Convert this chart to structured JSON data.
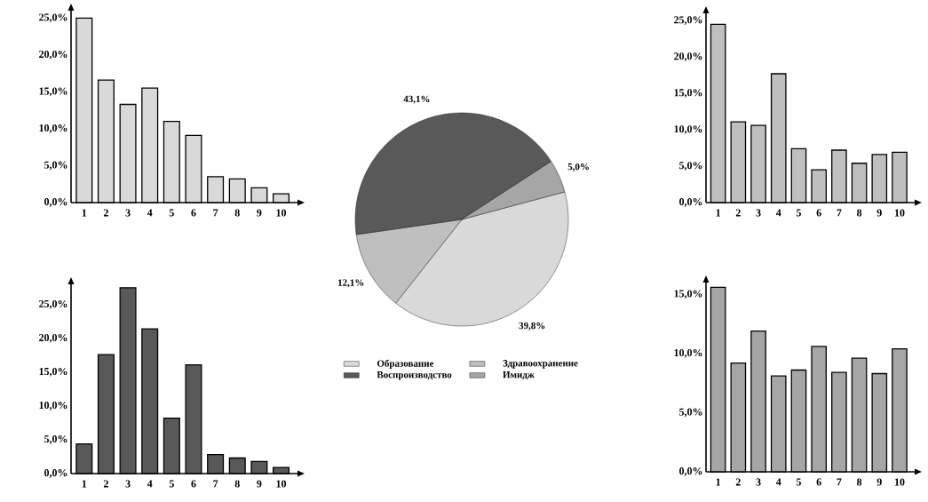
{
  "chart_data": [
    {
      "type": "bar",
      "categories": [
        "1",
        "2",
        "3",
        "4",
        "5",
        "6",
        "7",
        "8",
        "9",
        "10"
      ],
      "values": [
        25.0,
        16.6,
        13.3,
        15.5,
        11.0,
        9.1,
        3.5,
        3.2,
        2.0,
        1.2
      ],
      "color": "#d9d9d9",
      "ylim": [
        0,
        26
      ],
      "yticks": [
        {
          "value": 0,
          "label": "0,0%"
        },
        {
          "value": 5,
          "label": "5,0%"
        },
        {
          "value": 10,
          "label": "10,0%"
        },
        {
          "value": 15,
          "label": "15,0%"
        },
        {
          "value": 20,
          "label": "20,0%"
        },
        {
          "value": 25,
          "label": "25,0%"
        }
      ]
    },
    {
      "type": "pie",
      "categories": [
        "Образование",
        "Здравоохранение",
        "Воспроизводство",
        "Имидж"
      ],
      "values": [
        39.8,
        12.1,
        43.1,
        5.0
      ],
      "value_labels": [
        "39,8%",
        "12,1%",
        "43,1%",
        "5,0%"
      ],
      "colors": [
        "#d9d9d9",
        "#bfbfbf",
        "#595959",
        "#a6a6a6"
      ],
      "legend": "bottom"
    },
    {
      "type": "bar",
      "categories": [
        "1",
        "2",
        "3",
        "4",
        "5",
        "6",
        "7",
        "8",
        "9",
        "10"
      ],
      "values": [
        24.5,
        11.1,
        10.6,
        17.7,
        7.4,
        4.5,
        7.2,
        5.4,
        6.6,
        6.9
      ],
      "color": "#bfbfbf",
      "ylim": [
        0,
        26
      ],
      "yticks": [
        {
          "value": 0,
          "label": "0,0%"
        },
        {
          "value": 5,
          "label": "5,0%"
        },
        {
          "value": 10,
          "label": "10,0%"
        },
        {
          "value": 15,
          "label": "15,0%"
        },
        {
          "value": 20,
          "label": "20,0%"
        },
        {
          "value": 25,
          "label": "25,0%"
        }
      ]
    },
    {
      "type": "bar",
      "categories": [
        "1",
        "2",
        "3",
        "4",
        "5",
        "6",
        "7",
        "8",
        "9",
        "10"
      ],
      "values": [
        4.4,
        17.6,
        27.5,
        21.4,
        8.2,
        16.1,
        2.8,
        2.3,
        1.8,
        0.9
      ],
      "color": "#595959",
      "ylim": [
        0,
        28
      ],
      "yticks": [
        {
          "value": 0,
          "label": "0,0%"
        },
        {
          "value": 5,
          "label": "5,0%"
        },
        {
          "value": 10,
          "label": "10,0%"
        },
        {
          "value": 15,
          "label": "15,0%"
        },
        {
          "value": 20,
          "label": "20,0%"
        },
        {
          "value": 25,
          "label": "25,0%"
        }
      ]
    },
    {
      "type": "bar",
      "categories": [
        "1",
        "2",
        "3",
        "4",
        "5",
        "6",
        "7",
        "8",
        "9",
        "10"
      ],
      "values": [
        15.6,
        9.2,
        11.9,
        8.1,
        8.6,
        10.6,
        8.4,
        9.6,
        8.3,
        10.4
      ],
      "color": "#a6a6a6",
      "ylim": [
        0,
        16
      ],
      "yticks": [
        {
          "value": 0,
          "label": "0,0%"
        },
        {
          "value": 5,
          "label": "5,0%"
        },
        {
          "value": 10,
          "label": "10,0%"
        },
        {
          "value": 15,
          "label": "15,0%"
        }
      ]
    }
  ]
}
